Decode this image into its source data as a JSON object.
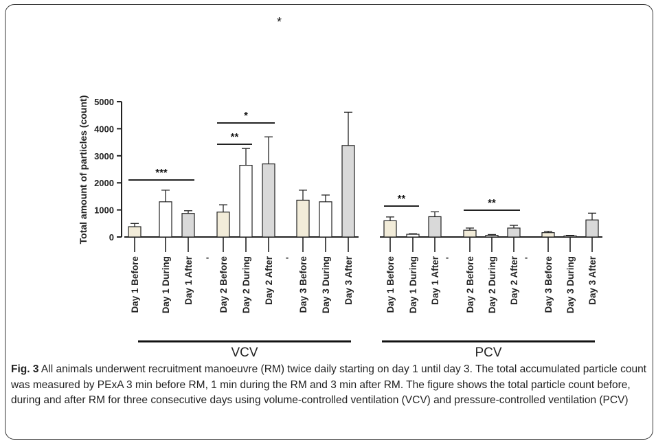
{
  "colors": {
    "before": "#f2ecd9",
    "during": "#ffffff",
    "after": "#d9d9d9",
    "axis": "#222222",
    "bar_stroke": "#222222"
  },
  "top_marker": "*",
  "caption": {
    "label": "Fig. 3",
    "text": " All animals underwent recruitment manoeuvre (RM) twice daily starting on day 1 until day 3. The total accumulated particle count was measured by PExA 3 min before RM, 1 min during the RM and 3 min after RM. The figure shows the total particle count before, during and after RM for three consecutive days using volume-controlled ventilation (VCV) and pressure-controlled ventilation (PCV)"
  },
  "chart_data": {
    "type": "bar",
    "ylabel": "Total amount of particles (count)",
    "ylim": [
      0,
      5000
    ],
    "yticks": [
      "0",
      "1000",
      "2000",
      "3000",
      "4000",
      "5000"
    ],
    "separator_label": "-",
    "groups": [
      {
        "name": "VCV",
        "categories": [
          "Day 1 Before",
          "Day 1 During",
          "Day 1 After",
          "Day 2 Before",
          "Day 2 During",
          "Day 2 After",
          "Day 3 Before",
          "Day 3 During",
          "Day 3 After"
        ],
        "values": [
          380,
          1300,
          870,
          920,
          2650,
          2700,
          1360,
          1300,
          3380
        ],
        "errors": [
          120,
          430,
          100,
          270,
          620,
          1000,
          370,
          250,
          1230
        ],
        "significance": [
          {
            "from": 0,
            "to": 2,
            "label": "***"
          },
          {
            "from": 3,
            "to": 4,
            "label": "**"
          },
          {
            "from": 3,
            "to": 5,
            "label": "*"
          }
        ]
      },
      {
        "name": "PCV",
        "categories": [
          "Day 1 Before",
          "Day 1 During",
          "Day 1 After",
          "Day 2 Before",
          "Day 2 During",
          "Day 2 After",
          "Day 3 Before",
          "Day 3 During",
          "Day 3 After"
        ],
        "values": [
          600,
          100,
          750,
          250,
          60,
          330,
          160,
          40,
          630
        ],
        "errors": [
          140,
          20,
          180,
          80,
          30,
          100,
          50,
          20,
          250
        ],
        "significance": [
          {
            "from": 0,
            "to": 1,
            "label": "**"
          },
          {
            "from": 3,
            "to": 5,
            "label": "**"
          }
        ]
      }
    ]
  }
}
